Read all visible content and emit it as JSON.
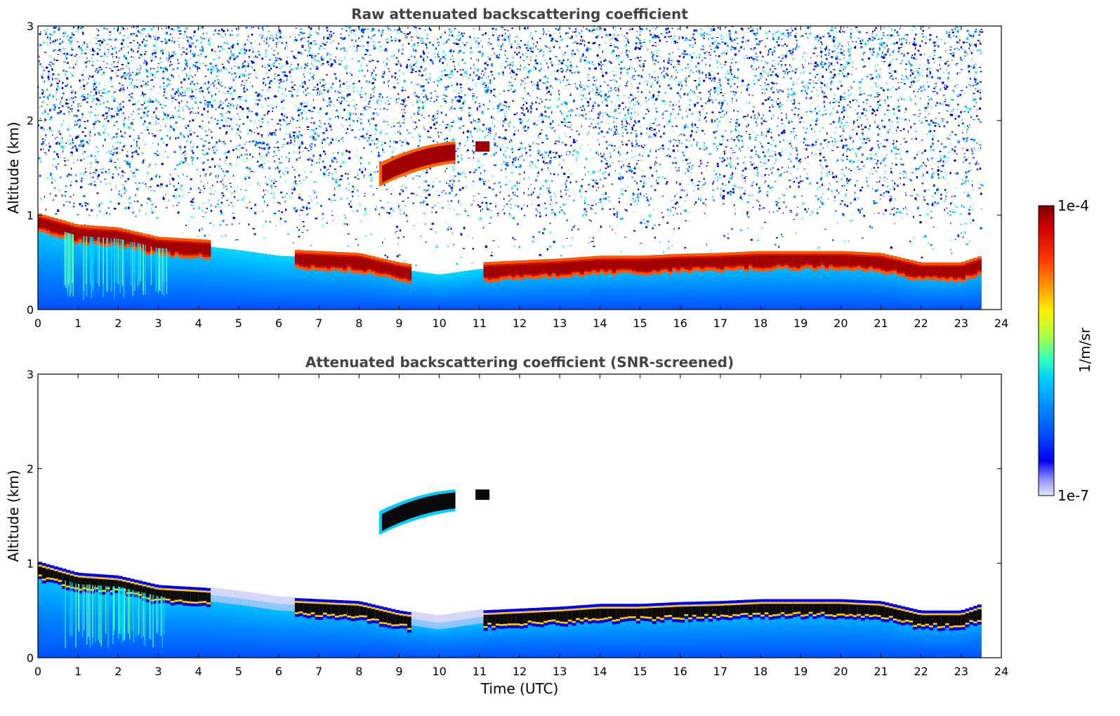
{
  "chart_data": [
    {
      "type": "heatmap",
      "title": "Raw attenuated backscattering coefficient",
      "xlabel": "",
      "ylabel": "Altitude (km)",
      "xlim": [
        0,
        24
      ],
      "ylim": [
        0,
        3
      ],
      "x_ticks": [
        "0",
        "1",
        "2",
        "3",
        "4",
        "5",
        "6",
        "7",
        "8",
        "9",
        "10",
        "11",
        "12",
        "13",
        "14",
        "15",
        "16",
        "17",
        "18",
        "19",
        "20",
        "21",
        "22",
        "23",
        "24"
      ],
      "y_ticks": [
        "0",
        "1",
        "2",
        "3"
      ],
      "data_end_time": 23.5,
      "layer_top_km": [
        [
          0,
          1.0
        ],
        [
          1,
          0.88
        ],
        [
          2,
          0.85
        ],
        [
          3,
          0.75
        ],
        [
          4.2,
          0.72
        ],
        [
          5,
          0.68
        ],
        [
          6,
          0.62
        ],
        [
          7,
          0.6
        ],
        [
          8,
          0.58
        ],
        [
          9,
          0.48
        ],
        [
          10,
          0.42
        ],
        [
          11,
          0.48
        ],
        [
          12,
          0.5
        ],
        [
          13,
          0.52
        ],
        [
          14,
          0.55
        ],
        [
          15,
          0.55
        ],
        [
          16,
          0.57
        ],
        [
          17,
          0.58
        ],
        [
          18,
          0.6
        ],
        [
          19,
          0.6
        ],
        [
          20,
          0.6
        ],
        [
          21,
          0.58
        ],
        [
          22,
          0.48
        ],
        [
          23,
          0.48
        ],
        [
          23.5,
          0.55
        ]
      ],
      "elevated_layer": {
        "start": 8.5,
        "end": 10.4,
        "bottom_km": [
          1.3,
          1.55
        ],
        "top_km": [
          1.55,
          1.78
        ]
      },
      "noisy_above_km": 1.0
    },
    {
      "type": "heatmap",
      "title": "Attenuated backscattering coefficient (SNR-screened)",
      "xlabel": "Time (UTC)",
      "ylabel": "Altitude (km)",
      "xlim": [
        0,
        24
      ],
      "ylim": [
        0,
        3
      ],
      "x_ticks": [
        "0",
        "1",
        "2",
        "3",
        "4",
        "5",
        "6",
        "7",
        "8",
        "9",
        "10",
        "11",
        "12",
        "13",
        "14",
        "15",
        "16",
        "17",
        "18",
        "19",
        "20",
        "21",
        "22",
        "23",
        "24"
      ],
      "y_ticks": [
        "0",
        "1",
        "2",
        "3"
      ],
      "data_end_time": 23.5,
      "elevated_layer": {
        "start": 8.5,
        "end": 10.4,
        "bottom_km": [
          1.3,
          1.55
        ],
        "top_km": [
          1.55,
          1.78
        ]
      }
    }
  ],
  "colorbar": {
    "label": "1/m/sr",
    "max_label": "1e-4",
    "min_label": "1e-7",
    "colors": [
      "#7f0000",
      "#d40000",
      "#ff3300",
      "#ff9900",
      "#ffee00",
      "#aaff44",
      "#33ffbb",
      "#00ccff",
      "#0088ff",
      "#0044ff",
      "#0000ee",
      "#8888ff",
      "#e6e6ff"
    ]
  }
}
